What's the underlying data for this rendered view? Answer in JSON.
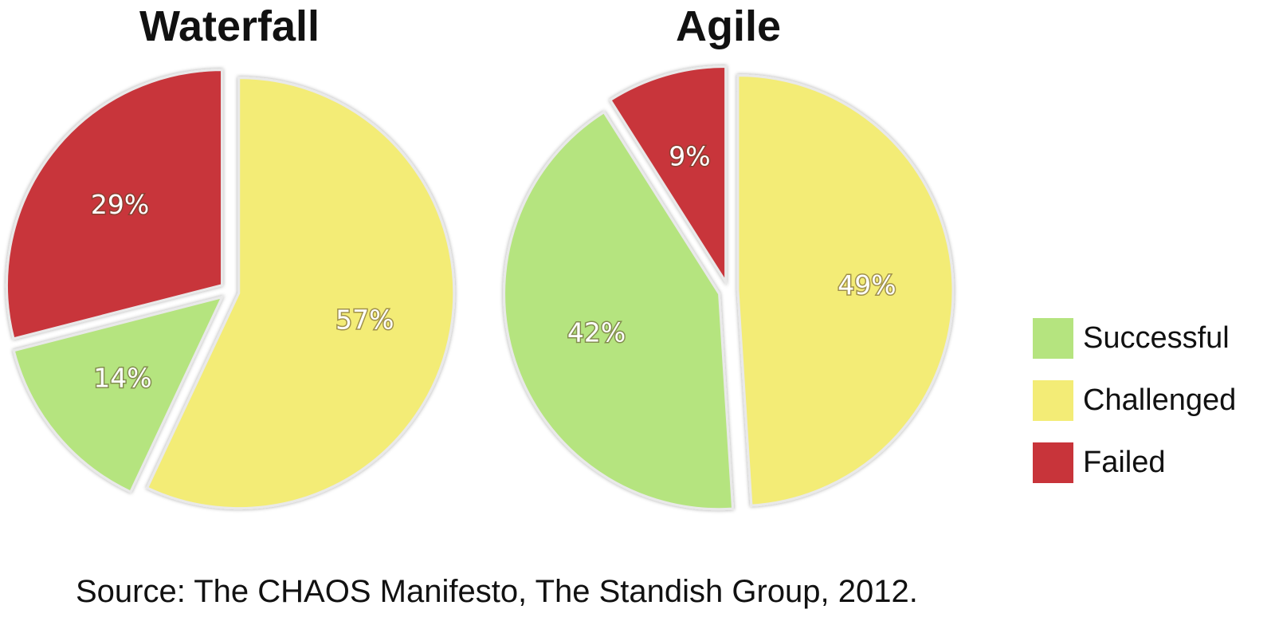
{
  "chart_data": [
    {
      "type": "pie",
      "title": "Waterfall",
      "categories": [
        "Successful",
        "Challenged",
        "Failed"
      ],
      "values": [
        14,
        57,
        29
      ],
      "labels": [
        "14%",
        "57%",
        "29%"
      ],
      "colors": [
        "#b5e47f",
        "#f3ec76",
        "#c8343a"
      ],
      "start_angle_deg": 0,
      "order": [
        1,
        0,
        2
      ]
    },
    {
      "type": "pie",
      "title": "Agile",
      "categories": [
        "Successful",
        "Challenged",
        "Failed"
      ],
      "values": [
        42,
        49,
        9
      ],
      "labels": [
        "42%",
        "49%",
        "9%"
      ],
      "colors": [
        "#b5e47f",
        "#f3ec76",
        "#c8343a"
      ],
      "start_angle_deg": 0,
      "order": [
        1,
        0,
        2
      ]
    }
  ],
  "legend": {
    "items": [
      {
        "label": "Successful",
        "color": "#b5e47f"
      },
      {
        "label": "Challenged",
        "color": "#f3ec76"
      },
      {
        "label": "Failed",
        "color": "#c8343a"
      }
    ]
  },
  "source": "Source: The CHAOS Manifesto, The Standish Group, 2012."
}
